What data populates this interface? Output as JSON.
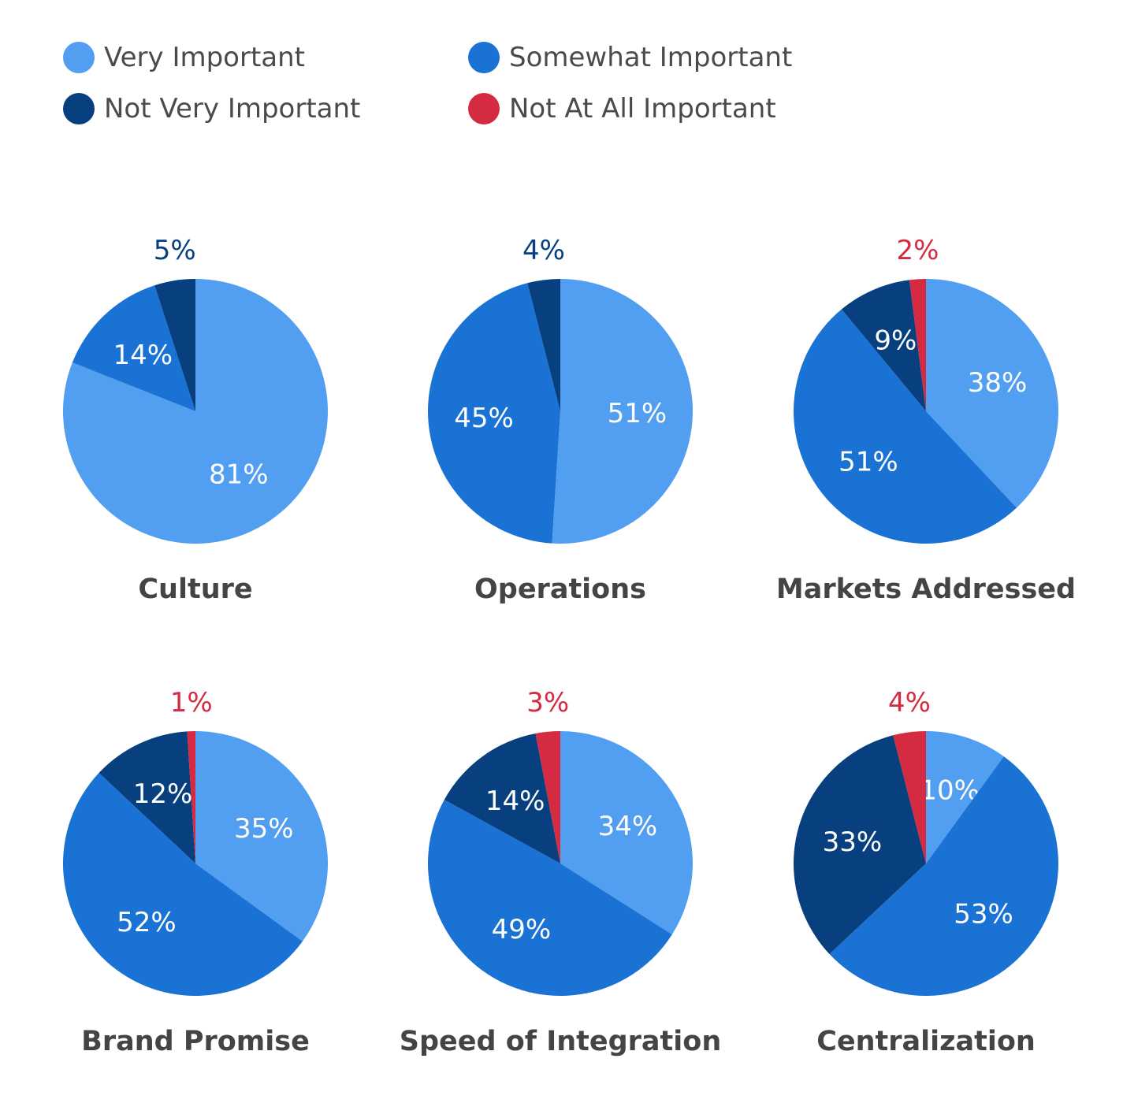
{
  "colors": {
    "Very Important": "#529ef0",
    "Somewhat Important": "#1a73d4",
    "Not Very Important": "#073f7f",
    "Not At All Important": "#d42b42",
    "title": "#444444"
  },
  "legend": [
    "Very Important",
    "Somewhat Important",
    "Not Very Important",
    "Not At All Important"
  ],
  "chart_data": [
    {
      "type": "pie",
      "title": "Culture",
      "labels": [
        "Very Important",
        "Somewhat Important",
        "Not Very Important"
      ],
      "values": [
        81,
        14,
        5
      ]
    },
    {
      "type": "pie",
      "title": "Operations",
      "labels": [
        "Very Important",
        "Somewhat Important",
        "Not Very Important"
      ],
      "values": [
        51,
        45,
        4
      ]
    },
    {
      "type": "pie",
      "title": "Markets Addressed",
      "labels": [
        "Very Important",
        "Somewhat Important",
        "Not Very Important",
        "Not At All Important"
      ],
      "values": [
        38,
        51,
        9,
        2
      ]
    },
    {
      "type": "pie",
      "title": "Brand Promise",
      "labels": [
        "Very Important",
        "Somewhat Important",
        "Not Very Important",
        "Not At All Important"
      ],
      "values": [
        35,
        52,
        12,
        1
      ]
    },
    {
      "type": "pie",
      "title": "Speed of Integration",
      "labels": [
        "Very Important",
        "Somewhat Important",
        "Not Very Important",
        "Not At All Important"
      ],
      "values": [
        34,
        49,
        14,
        3
      ]
    },
    {
      "type": "pie",
      "title": "Centralization",
      "labels": [
        "Very Important",
        "Somewhat Important",
        "Not Very Important",
        "Not At All Important"
      ],
      "values": [
        10,
        53,
        33,
        4
      ]
    }
  ]
}
